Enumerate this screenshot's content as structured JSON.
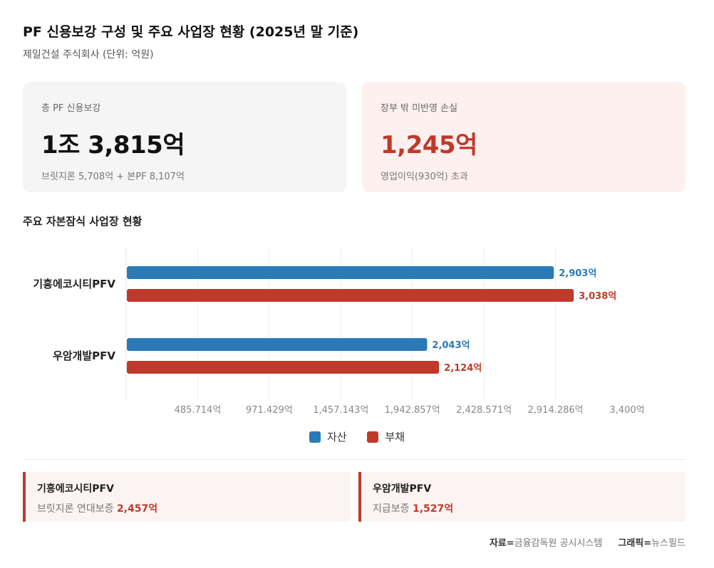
{
  "header": {
    "title": "PF 신용보강 구성 및 주요 사업장 현황 (2025년 말 기준)",
    "subtitle": "제일건설 주식회사 (단위: 억원)"
  },
  "cards": {
    "total": {
      "label": "총 PF 신용보강",
      "value": "1조 3,815억",
      "note": "브릿지론 5,708억 + 본PF 8,107억"
    },
    "loss": {
      "label": "장부 밖 미반영 손실",
      "value": "1,245억",
      "note": "영업이익(930억) 초과"
    }
  },
  "section_title": "주요 자본잠식 사업장 현황",
  "chart_data": {
    "type": "bar",
    "orientation": "horizontal",
    "categories": [
      "기흥에코시티PFV",
      "우암개발PFV"
    ],
    "series": [
      {
        "name": "자산",
        "values": [
          2903,
          2043
        ],
        "labels": [
          "2,903억",
          "2,043억"
        ],
        "color": "#2a7ab8"
      },
      {
        "name": "부채",
        "values": [
          3038,
          2124
        ],
        "labels": [
          "3,038억",
          "2,124억"
        ],
        "color": "#c0392b"
      }
    ],
    "xlim": [
      0,
      3400
    ],
    "ticks": [
      485.714,
      971.429,
      1457.143,
      1942.857,
      2428.571,
      2914.286,
      3400
    ],
    "tick_labels": [
      "485.714억",
      "971.429억",
      "1,457.143억",
      "1,942.857억",
      "2,428.571억",
      "2,914.286억",
      "3,400억"
    ],
    "grid": true,
    "legend": "bottom-center"
  },
  "details": [
    {
      "name": "기흥에코시티PFV",
      "desc": "브릿지론 연대보증",
      "value": "2,457억"
    },
    {
      "name": "우암개발PFV",
      "desc": "지급보증",
      "value": "1,527억"
    }
  ],
  "source": {
    "data_label": "자료=",
    "data_value": "금융감독원 공시시스템",
    "graphic_label": "그래픽=",
    "graphic_value": "뉴스필드"
  }
}
